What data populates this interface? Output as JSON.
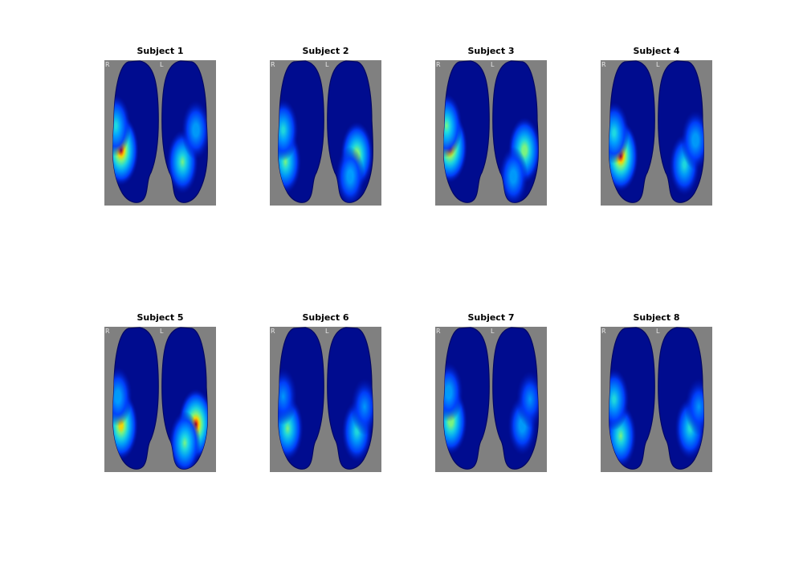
{
  "figure": {
    "panels": [
      {
        "title": "Subject 1",
        "hemi_labels": [
          "R",
          "L"
        ],
        "spots": [
          [
            0.15,
            0.62,
            1
          ],
          [
            0.1,
            0.45,
            0.6
          ],
          [
            0.7,
            0.7,
            0.7
          ],
          [
            0.82,
            0.48,
            0.5
          ]
        ]
      },
      {
        "title": "Subject 2",
        "hemi_labels": [
          "R",
          "L"
        ],
        "spots": [
          [
            0.14,
            0.7,
            0.7
          ],
          [
            0.12,
            0.48,
            0.6
          ],
          [
            0.78,
            0.65,
            0.8
          ],
          [
            0.72,
            0.8,
            0.5
          ]
        ]
      },
      {
        "title": "Subject 3",
        "hemi_labels": [
          "R",
          "L"
        ],
        "spots": [
          [
            0.13,
            0.6,
            1
          ],
          [
            0.1,
            0.45,
            0.7
          ],
          [
            0.8,
            0.62,
            0.8
          ],
          [
            0.7,
            0.8,
            0.5
          ]
        ]
      },
      {
        "title": "Subject 4",
        "hemi_labels": [
          "R",
          "L"
        ],
        "spots": [
          [
            0.18,
            0.66,
            1
          ],
          [
            0.12,
            0.5,
            0.6
          ],
          [
            0.75,
            0.72,
            0.6
          ],
          [
            0.85,
            0.55,
            0.5
          ]
        ]
      },
      {
        "title": "Subject 5",
        "hemi_labels": [
          "R",
          "L"
        ],
        "spots": [
          [
            0.15,
            0.68,
            0.9
          ],
          [
            0.12,
            0.48,
            0.5
          ],
          [
            0.82,
            0.67,
            1
          ],
          [
            0.72,
            0.8,
            0.7
          ]
        ]
      },
      {
        "title": "Subject 6",
        "hemi_labels": [
          "R",
          "L"
        ],
        "spots": [
          [
            0.16,
            0.7,
            0.7
          ],
          [
            0.12,
            0.48,
            0.4
          ],
          [
            0.78,
            0.72,
            0.6
          ],
          [
            0.85,
            0.55,
            0.4
          ]
        ]
      },
      {
        "title": "Subject 7",
        "hemi_labels": [
          "R",
          "L"
        ],
        "spots": [
          [
            0.14,
            0.65,
            0.8
          ],
          [
            0.12,
            0.45,
            0.5
          ],
          [
            0.78,
            0.68,
            0.5
          ],
          [
            0.85,
            0.5,
            0.4
          ]
        ]
      },
      {
        "title": "Subject 8",
        "hemi_labels": [
          "R",
          "L"
        ],
        "spots": [
          [
            0.18,
            0.75,
            0.7
          ],
          [
            0.12,
            0.5,
            0.6
          ],
          [
            0.8,
            0.7,
            0.6
          ],
          [
            0.88,
            0.55,
            0.4
          ]
        ]
      }
    ]
  },
  "colors": {
    "background": "#808080",
    "cortex": "#000c8f",
    "cortex_shadow": "#000666"
  }
}
